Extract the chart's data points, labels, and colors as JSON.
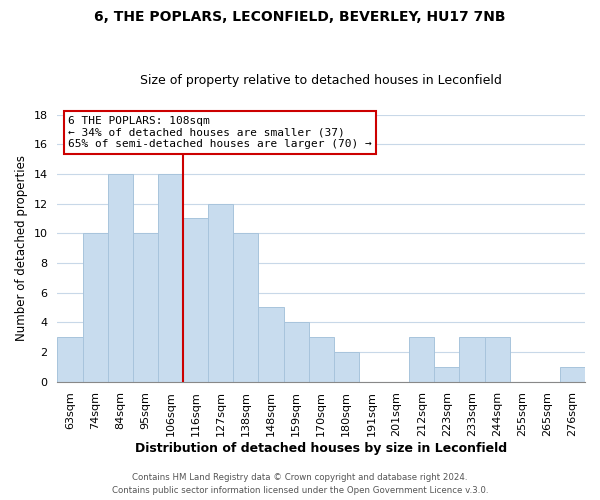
{
  "title": "6, THE POPLARS, LECONFIELD, BEVERLEY, HU17 7NB",
  "subtitle": "Size of property relative to detached houses in Leconfield",
  "xlabel": "Distribution of detached houses by size in Leconfield",
  "ylabel": "Number of detached properties",
  "bar_color": "#c8dcee",
  "bar_edge_color": "#a8c4dc",
  "bins": [
    "63sqm",
    "74sqm",
    "84sqm",
    "95sqm",
    "106sqm",
    "116sqm",
    "127sqm",
    "138sqm",
    "148sqm",
    "159sqm",
    "170sqm",
    "180sqm",
    "191sqm",
    "201sqm",
    "212sqm",
    "223sqm",
    "233sqm",
    "244sqm",
    "255sqm",
    "265sqm",
    "276sqm"
  ],
  "values": [
    3,
    10,
    14,
    10,
    14,
    11,
    12,
    10,
    5,
    4,
    3,
    2,
    0,
    0,
    3,
    1,
    3,
    3,
    0,
    0,
    1
  ],
  "ylim": [
    0,
    18
  ],
  "yticks": [
    0,
    2,
    4,
    6,
    8,
    10,
    12,
    14,
    16,
    18
  ],
  "property_line_bin_index": 5,
  "annotation_title": "6 THE POPLARS: 108sqm",
  "annotation_line1": "← 34% of detached houses are smaller (37)",
  "annotation_line2": "65% of semi-detached houses are larger (70) →",
  "footer1": "Contains HM Land Registry data © Crown copyright and database right 2024.",
  "footer2": "Contains public sector information licensed under the Open Government Licence v.3.0.",
  "annotation_box_color": "#ffffff",
  "annotation_box_edge": "#cc0000",
  "property_line_color": "#cc0000",
  "background_color": "#ffffff",
  "grid_color": "#c8d8e8"
}
